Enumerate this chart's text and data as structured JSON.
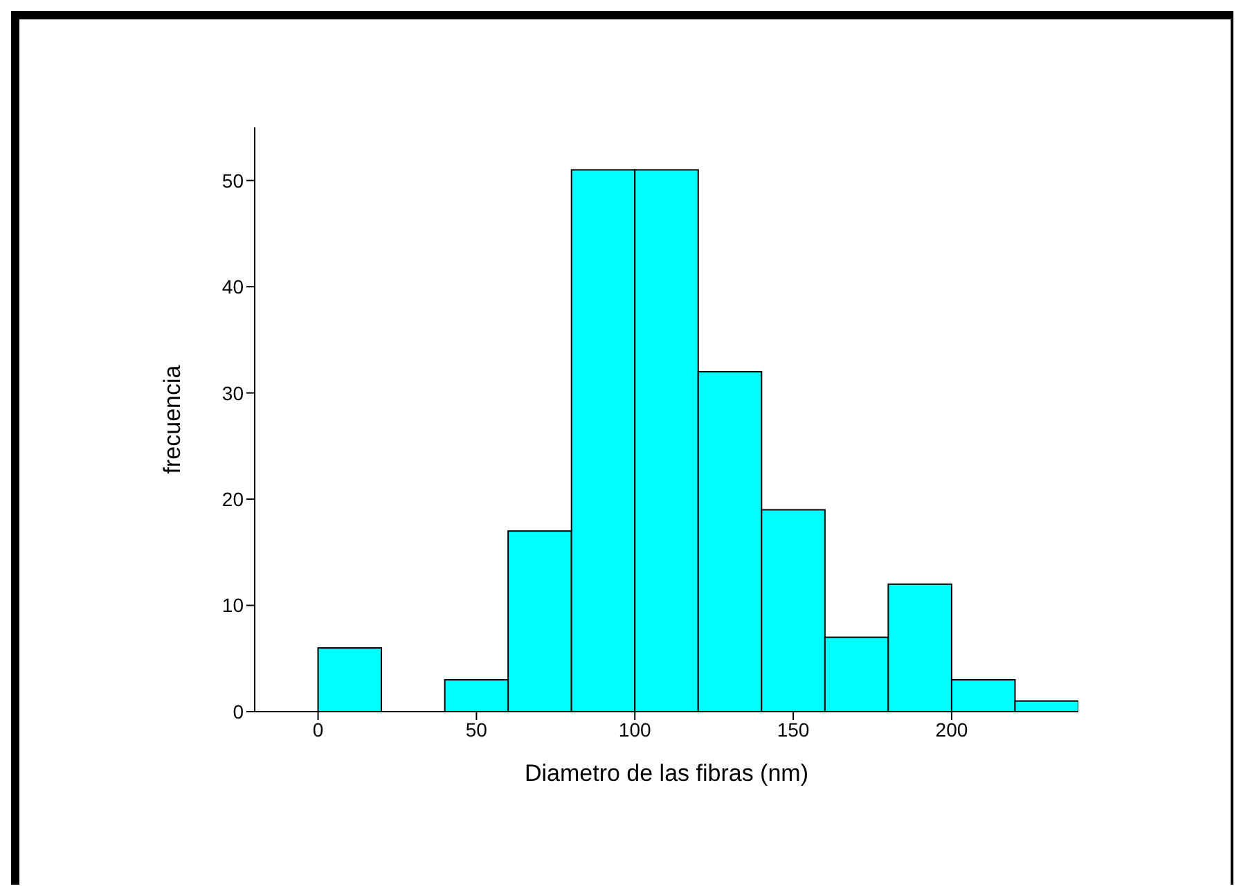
{
  "chart_data": {
    "type": "histogram",
    "xlabel": "Diametro de las fibras   (nm)",
    "ylabel": "frecuencia",
    "bins": [
      0,
      20,
      40,
      60,
      80,
      100,
      120,
      140,
      160,
      180,
      200,
      220,
      240
    ],
    "values": [
      6,
      0,
      3,
      17,
      51,
      51,
      32,
      19,
      7,
      12,
      3,
      1
    ],
    "color": "#00ffff",
    "xlim": [
      -20,
      240
    ],
    "xticks": [
      0,
      50,
      100,
      150,
      200
    ],
    "ylim": [
      0,
      55
    ],
    "yticks": [
      0,
      10,
      20,
      30,
      40,
      50
    ],
    "grid": false,
    "legend": false
  }
}
